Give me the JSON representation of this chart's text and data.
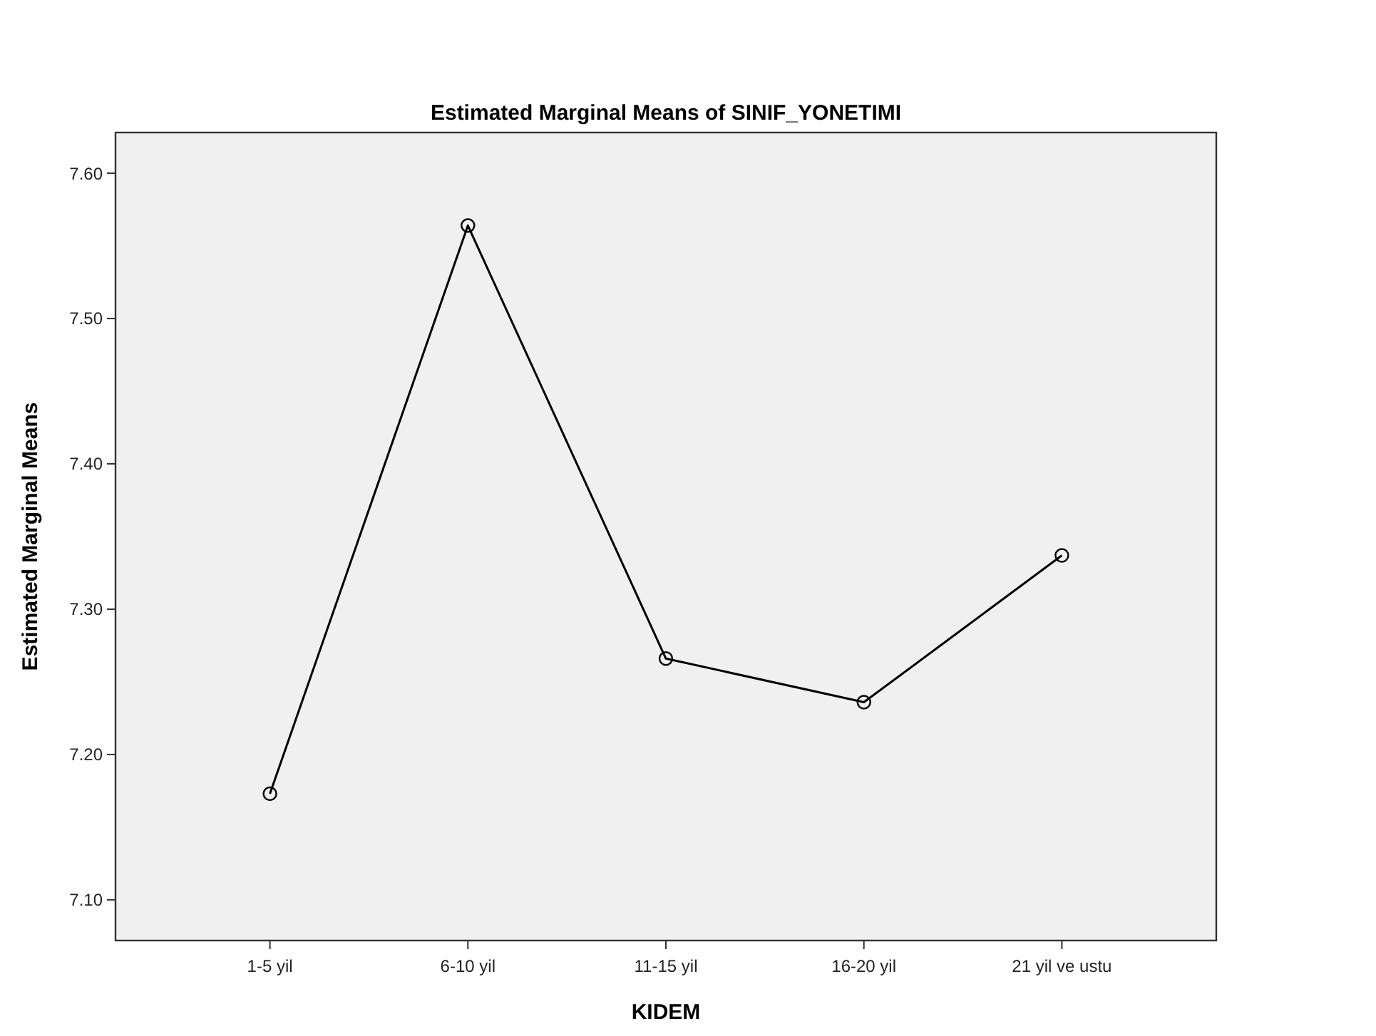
{
  "chart_data": {
    "type": "line",
    "title": "Estimated Marginal Means of SINIF_YONETIMI",
    "xlabel": "KIDEM",
    "ylabel": "Estimated Marginal Means",
    "categories": [
      "1-5 yil",
      "6-10 yil",
      "11-15 yil",
      "16-20 yil",
      "21 yil ve ustu"
    ],
    "series": [
      {
        "color": "#000000",
        "values": [
          7.173,
          7.564,
          7.266,
          7.236,
          7.337
        ]
      }
    ],
    "ylim": [
      7.072,
      7.628
    ],
    "yticks": [
      {
        "value": 7.1,
        "label": "7.10"
      },
      {
        "value": 7.2,
        "label": "7.20"
      },
      {
        "value": 7.3,
        "label": "7.30"
      },
      {
        "value": 7.4,
        "label": "7.40"
      },
      {
        "value": 7.5,
        "label": "7.50"
      },
      {
        "value": 7.6,
        "label": "7.60"
      }
    ],
    "grid": false,
    "marker": "circle",
    "line_style": "solid"
  }
}
